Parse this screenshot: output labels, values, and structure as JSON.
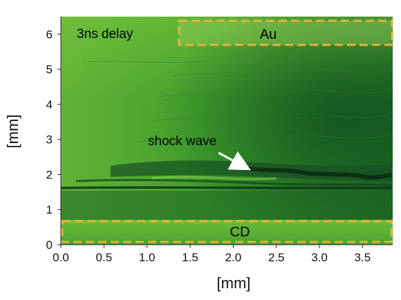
{
  "image": {
    "annotations": {
      "delay": "3ns delay",
      "shock_wave": "shock wave",
      "au_region": "Au",
      "cd_region": "CD"
    },
    "x_axis": {
      "label": "[mm]",
      "ticks": [
        "0.0",
        "0.5",
        "1.0",
        "1.5",
        "2.0",
        "2.5",
        "3.0",
        "3.5"
      ],
      "range_mm": [
        0.0,
        3.85
      ]
    },
    "y_axis": {
      "label": "[mm]",
      "ticks": [
        "0",
        "1",
        "2",
        "3",
        "4",
        "5",
        "6"
      ],
      "range_mm": [
        0.0,
        6.5
      ]
    },
    "colors": {
      "background_green": "#3f9a2a",
      "dark_band": "#0e3a1a",
      "region_box": "#e8b23a"
    }
  }
}
